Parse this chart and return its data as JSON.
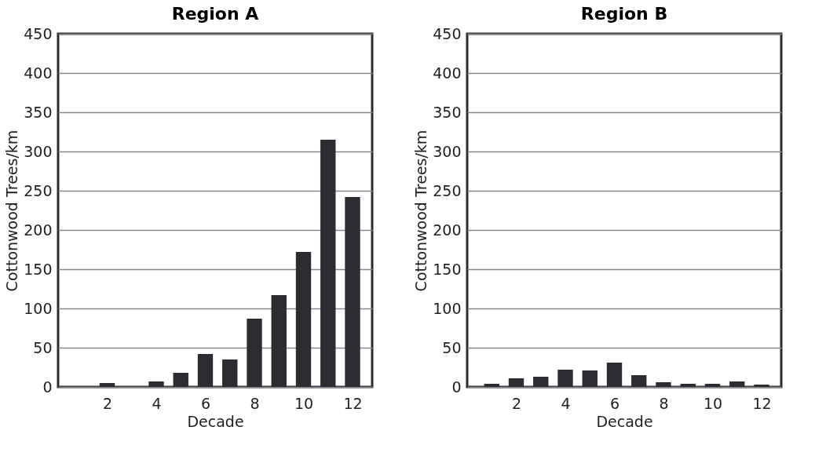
{
  "chart_data": [
    {
      "type": "bar",
      "title": "Region A",
      "xlabel": "Decade",
      "ylabel": "Cottonwood Trees/km",
      "x": [
        1,
        2,
        3,
        4,
        5,
        6,
        7,
        8,
        9,
        10,
        11,
        12
      ],
      "values": [
        0,
        5,
        0,
        7,
        18,
        42,
        35,
        87,
        117,
        172,
        315,
        242
      ],
      "color": "#2b2d33",
      "xlim": [
        0,
        12.8
      ],
      "xticks": [
        2,
        4,
        6,
        8,
        10,
        12
      ],
      "ylim": [
        0,
        450
      ],
      "yticks": [
        0,
        50,
        100,
        150,
        200,
        250,
        300,
        350,
        400,
        450
      ],
      "grid": "y"
    },
    {
      "type": "bar",
      "title": "Region B",
      "xlabel": "Decade",
      "ylabel": "Cottonwood Trees/km",
      "x": [
        1,
        2,
        3,
        4,
        5,
        6,
        7,
        8,
        9,
        10,
        11,
        12
      ],
      "values": [
        4,
        11,
        13,
        22,
        21,
        31,
        15,
        6,
        4,
        4,
        7,
        3
      ],
      "color": "#2b2d33",
      "xlim": [
        0,
        12.8
      ],
      "xticks": [
        2,
        4,
        6,
        8,
        10,
        12
      ],
      "ylim": [
        0,
        450
      ],
      "yticks": [
        0,
        50,
        100,
        150,
        200,
        250,
        300,
        350,
        400,
        450
      ],
      "grid": "y"
    }
  ]
}
